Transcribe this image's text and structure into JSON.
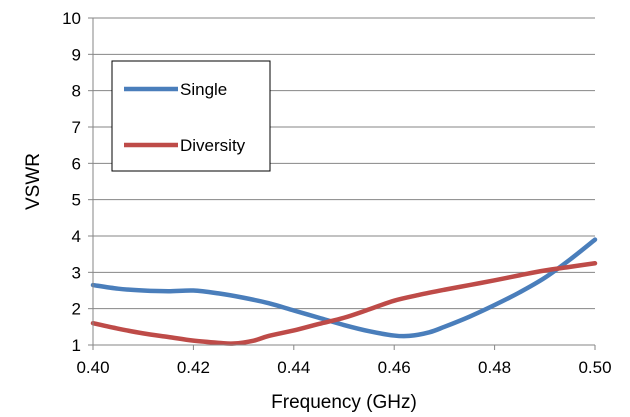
{
  "chart_data": {
    "type": "line",
    "xlabel": "Frequency (GHz)",
    "ylabel": "VSWR",
    "xlim": [
      0.4,
      0.5
    ],
    "ylim": [
      1,
      10
    ],
    "x_ticks": [
      "0.40",
      "0.42",
      "0.44",
      "0.46",
      "0.48",
      "0.50"
    ],
    "y_ticks": [
      "1",
      "2",
      "3",
      "4",
      "5",
      "6",
      "7",
      "8",
      "9",
      "10"
    ],
    "grid": "horizontal",
    "legend_position": "top-left",
    "series": [
      {
        "name": "Single",
        "color": "#4a7ebb",
        "points": [
          [
            0.4,
            2.65
          ],
          [
            0.405,
            2.55
          ],
          [
            0.41,
            2.5
          ],
          [
            0.415,
            2.48
          ],
          [
            0.42,
            2.5
          ],
          [
            0.425,
            2.42
          ],
          [
            0.43,
            2.3
          ],
          [
            0.435,
            2.15
          ],
          [
            0.44,
            1.95
          ],
          [
            0.445,
            1.75
          ],
          [
            0.45,
            1.55
          ],
          [
            0.455,
            1.38
          ],
          [
            0.46,
            1.26
          ],
          [
            0.463,
            1.25
          ],
          [
            0.467,
            1.35
          ],
          [
            0.47,
            1.5
          ],
          [
            0.475,
            1.78
          ],
          [
            0.48,
            2.1
          ],
          [
            0.485,
            2.45
          ],
          [
            0.49,
            2.85
          ],
          [
            0.495,
            3.35
          ],
          [
            0.5,
            3.9
          ]
        ]
      },
      {
        "name": "Diversity",
        "color": "#be4b48",
        "points": [
          [
            0.4,
            1.6
          ],
          [
            0.405,
            1.45
          ],
          [
            0.41,
            1.32
          ],
          [
            0.415,
            1.22
          ],
          [
            0.42,
            1.12
          ],
          [
            0.425,
            1.06
          ],
          [
            0.428,
            1.04
          ],
          [
            0.432,
            1.12
          ],
          [
            0.435,
            1.25
          ],
          [
            0.44,
            1.4
          ],
          [
            0.445,
            1.58
          ],
          [
            0.45,
            1.75
          ],
          [
            0.455,
            1.98
          ],
          [
            0.46,
            2.22
          ],
          [
            0.465,
            2.38
          ],
          [
            0.47,
            2.52
          ],
          [
            0.475,
            2.65
          ],
          [
            0.48,
            2.78
          ],
          [
            0.485,
            2.92
          ],
          [
            0.49,
            3.05
          ],
          [
            0.495,
            3.15
          ],
          [
            0.5,
            3.25
          ]
        ]
      }
    ]
  }
}
